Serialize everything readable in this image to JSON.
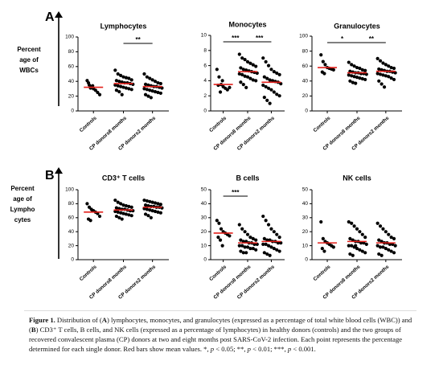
{
  "panels": [
    {
      "letter": "A",
      "y_label_lines": [
        "Percent",
        "age of",
        "WBCs"
      ]
    },
    {
      "letter": "B",
      "y_label_lines": [
        "Percent",
        "age of",
        "Lympho",
        "cytes"
      ]
    }
  ],
  "chart_data": [
    {
      "type": "dotplot",
      "title": "Lymphocytes",
      "ylim": [
        0,
        100
      ],
      "yticks": [
        0,
        20,
        40,
        60,
        80,
        100
      ],
      "point_color": "#000000",
      "mean_color": "#e3201b",
      "series": [
        {
          "name": "Controls",
          "values": [
            41,
            35,
            33,
            30,
            28,
            25,
            22,
            38,
            31,
            34
          ],
          "mean": 32
        },
        {
          "name": "CP donors8 months",
          "values": [
            55,
            50,
            48,
            46,
            45,
            44,
            42,
            41,
            40,
            39,
            38,
            38,
            37,
            36,
            35,
            34,
            33,
            32,
            31,
            30,
            29,
            28,
            26,
            22
          ],
          "mean": 37
        },
        {
          "name": "CP donors2 months",
          "values": [
            50,
            46,
            44,
            42,
            40,
            38,
            37,
            36,
            35,
            34,
            33,
            33,
            32,
            31,
            30,
            29,
            28,
            27,
            26,
            25,
            24,
            22,
            20,
            18
          ],
          "mean": 33
        }
      ],
      "significance": [
        {
          "between": [
            "CP donors8 months",
            "CP donors2 months"
          ],
          "label": "**"
        }
      ]
    },
    {
      "type": "dotplot",
      "title": "Monocytes",
      "ylim": [
        0,
        10
      ],
      "yticks": [
        0,
        2,
        4,
        6,
        8,
        10
      ],
      "point_color": "#000000",
      "mean_color": "#e3201b",
      "series": [
        {
          "name": "Controls",
          "values": [
            5.5,
            4.5,
            3.5,
            3.2,
            3,
            2.8,
            3.1,
            3.4,
            2.5,
            4
          ],
          "mean": 3.5
        },
        {
          "name": "CP donors8 months",
          "values": [
            7.5,
            7,
            6.8,
            6.5,
            6.3,
            6.1,
            5.9,
            5.7,
            5.5,
            5.4,
            5.3,
            5.2,
            5.1,
            5,
            4.9,
            4.8,
            4.6,
            4.5,
            4.3,
            4.1,
            4,
            3.8,
            3.5,
            3.1
          ],
          "mean": 5.2
        },
        {
          "name": "CP donors2 months",
          "values": [
            7,
            6.5,
            6,
            5.5,
            5.2,
            5,
            4.8,
            4.5,
            4.3,
            4.1,
            4,
            3.9,
            3.8,
            3.6,
            3.4,
            3.2,
            3,
            2.8,
            2.5,
            2.2,
            2,
            1.8,
            1.4,
            1
          ],
          "mean": 3.8
        }
      ],
      "significance": [
        {
          "between": [
            "Controls",
            "CP donors8 months"
          ],
          "label": "***"
        },
        {
          "between": [
            "CP donors8 months",
            "CP donors2 months"
          ],
          "label": "***"
        }
      ]
    },
    {
      "type": "dotplot",
      "title": "Granulocytes",
      "ylim": [
        0,
        100
      ],
      "yticks": [
        0,
        20,
        40,
        60,
        80,
        100
      ],
      "point_color": "#000000",
      "mean_color": "#e3201b",
      "series": [
        {
          "name": "Controls",
          "values": [
            75,
            66,
            62,
            58,
            57,
            56,
            55,
            52,
            50
          ],
          "mean": 58
        },
        {
          "name": "CP donors8 months",
          "values": [
            65,
            62,
            60,
            58,
            57,
            55,
            54,
            53,
            52,
            51,
            51,
            50,
            50,
            49,
            48,
            47,
            46,
            45,
            44,
            43,
            42,
            40,
            38,
            37
          ],
          "mean": 51
        },
        {
          "name": "CP donors2 months",
          "values": [
            70,
            67,
            64,
            62,
            60,
            58,
            57,
            56,
            55,
            54,
            53,
            53,
            52,
            51,
            50,
            49,
            48,
            47,
            46,
            44,
            42,
            40,
            36,
            32
          ],
          "mean": 53
        }
      ],
      "significance": [
        {
          "between": [
            "Controls",
            "CP donors8 months"
          ],
          "label": "*"
        },
        {
          "between": [
            "CP donors8 months",
            "CP donors2 months"
          ],
          "label": "**"
        }
      ]
    },
    {
      "type": "dotplot",
      "title": "CD3⁺ T cells",
      "ylim": [
        0,
        100
      ],
      "yticks": [
        0,
        20,
        40,
        60,
        80,
        100
      ],
      "point_color": "#000000",
      "mean_color": "#e3201b",
      "series": [
        {
          "name": "Controls",
          "values": [
            80,
            75,
            72,
            70,
            68,
            66,
            62,
            58,
            56,
            70
          ],
          "mean": 68
        },
        {
          "name": "CP donors8 months",
          "values": [
            85,
            82,
            80,
            78,
            77,
            76,
            75,
            74,
            73,
            72,
            72,
            71,
            70,
            70,
            69,
            68,
            67,
            66,
            65,
            64,
            63,
            62,
            60,
            58
          ],
          "mean": 71
        },
        {
          "name": "CP donors2 months",
          "values": [
            85,
            84,
            83,
            82,
            81,
            80,
            79,
            78,
            77,
            76,
            76,
            75,
            75,
            74,
            73,
            72,
            71,
            70,
            69,
            68,
            67,
            65,
            63,
            60
          ],
          "mean": 75
        }
      ],
      "significance": []
    },
    {
      "type": "dotplot",
      "title": "B cells",
      "ylim": [
        0,
        50
      ],
      "yticks": [
        0,
        10,
        20,
        30,
        40,
        50
      ],
      "point_color": "#000000",
      "mean_color": "#e3201b",
      "series": [
        {
          "name": "Controls",
          "values": [
            28,
            26,
            22,
            20,
            19,
            18,
            17,
            16,
            14,
            10
          ],
          "mean": 19
        },
        {
          "name": "CP donors8 months",
          "values": [
            25,
            22,
            20,
            18,
            16,
            15,
            14,
            14,
            13,
            13,
            12,
            12,
            11,
            11,
            10,
            10,
            9,
            9,
            8,
            8,
            7,
            6,
            5,
            5
          ],
          "mean": 12
        },
        {
          "name": "CP donors2 months",
          "values": [
            31,
            28,
            25,
            22,
            20,
            18,
            16,
            15,
            14,
            14,
            13,
            13,
            12,
            12,
            11,
            11,
            10,
            9,
            8,
            7,
            6,
            5,
            4,
            3
          ],
          "mean": 13
        }
      ],
      "significance": [
        {
          "between": [
            "Controls",
            "CP donors8 months"
          ],
          "label": "***"
        }
      ]
    },
    {
      "type": "dotplot",
      "title": "NK cells",
      "ylim": [
        0,
        50
      ],
      "yticks": [
        0,
        10,
        20,
        30,
        40,
        50
      ],
      "point_color": "#000000",
      "mean_color": "#e3201b",
      "series": [
        {
          "name": "Controls",
          "values": [
            27,
            15,
            13,
            12,
            11,
            10,
            9,
            8,
            6
          ],
          "mean": 12
        },
        {
          "name": "CP donors8 months",
          "values": [
            27,
            26,
            24,
            22,
            20,
            18,
            16,
            15,
            14,
            13,
            13,
            12,
            12,
            11,
            10,
            10,
            9,
            8,
            7,
            6,
            5,
            4,
            3,
            10
          ],
          "mean": 13
        },
        {
          "name": "CP donors2 months",
          "values": [
            26,
            24,
            22,
            20,
            18,
            16,
            15,
            14,
            13,
            12,
            12,
            11,
            11,
            10,
            10,
            9,
            9,
            8,
            7,
            6,
            5,
            4,
            3,
            12
          ],
          "mean": 12
        }
      ],
      "significance": []
    }
  ],
  "caption": [
    {
      "text": "Figure 1.",
      "bold": true
    },
    {
      "text": " Distribution of ("
    },
    {
      "text": "A",
      "bold": true
    },
    {
      "text": ") lymphocytes, monocytes, and granulocytes (expressed as a percentage of total white blood cells (WBC)) and ("
    },
    {
      "text": "B",
      "bold": true
    },
    {
      "text": ") CD3⁺ T cells, B cells, and NK cells (expressed as a percentage of lymphocytes) in healthy donors (controls) and the two groups of recovered convalescent plasma (CP) donors at two and eight months post SARS-CoV-2 infection. Each point represents the percentage determined for each single donor. Red bars show mean values. *, "
    },
    {
      "text": "p",
      "italic": true
    },
    {
      "text": " < 0.05; **, "
    },
    {
      "text": "p",
      "italic": true
    },
    {
      "text": " < 0.01; ***, "
    },
    {
      "text": "p",
      "italic": true
    },
    {
      "text": " < 0.001."
    }
  ]
}
